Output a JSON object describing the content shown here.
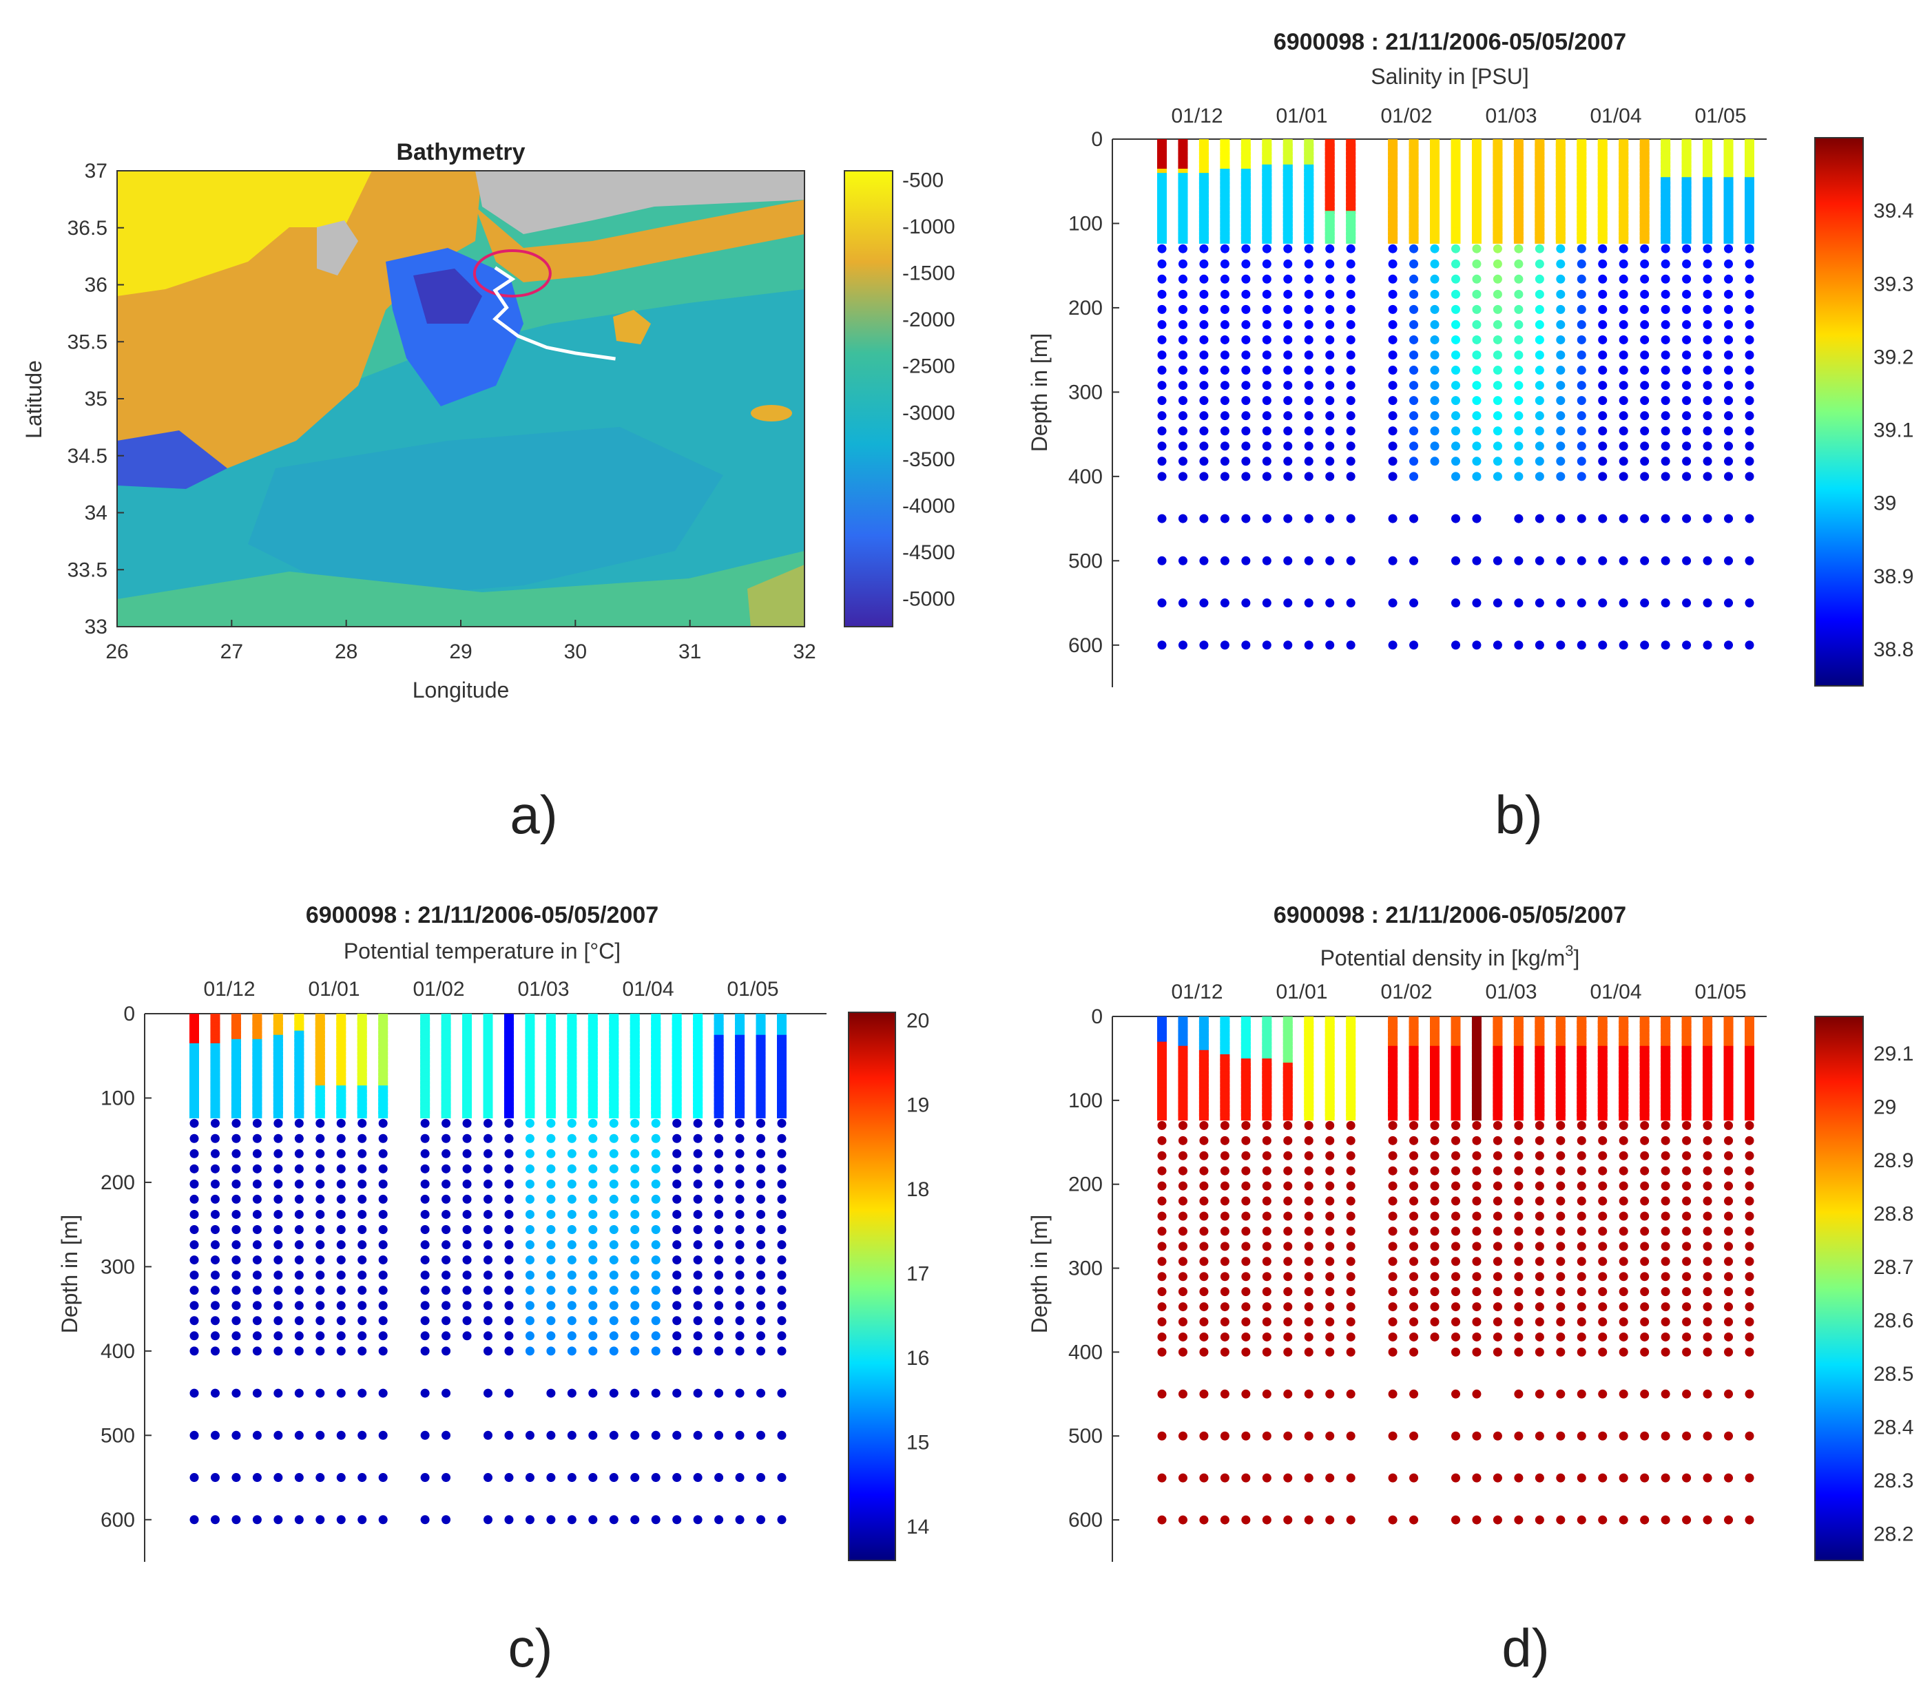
{
  "panel_labels": [
    "a)",
    "b)",
    "c)",
    "d)"
  ],
  "chart_data": [
    {
      "id": "a",
      "type": "heatmap",
      "title": "Bathymetry",
      "xlabel": "Longitude",
      "ylabel": "Latitude",
      "xlim": [
        26,
        32
      ],
      "ylim": [
        33,
        37
      ],
      "xticks": [
        "26",
        "27",
        "28",
        "29",
        "30",
        "31",
        "32"
      ],
      "yticks": [
        "33",
        "33.5",
        "34",
        "34.5",
        "35",
        "35.5",
        "36",
        "36.5",
        "37"
      ],
      "colorbar_ticks": [
        "-500",
        "-1000",
        "-1500",
        "-2000",
        "-2500",
        "-3000",
        "-3500",
        "-4000",
        "-4500",
        "-5000"
      ],
      "colorbar_range": [
        -5300,
        -400
      ],
      "float_track": [
        [
          29.3,
          36.15
        ],
        [
          29.45,
          36.05
        ],
        [
          29.3,
          35.95
        ],
        [
          29.4,
          35.8
        ],
        [
          29.3,
          35.7
        ],
        [
          29.5,
          35.55
        ],
        [
          29.75,
          35.45
        ],
        [
          30.0,
          35.4
        ],
        [
          30.35,
          35.35
        ]
      ],
      "highlight_ellipse_center": [
        29.45,
        36.1
      ]
    },
    {
      "id": "b",
      "type": "scatter",
      "title": "6900098 : 21/11/2006-05/05/2007",
      "subtitle": "Salinity in [PSU]",
      "ylabel": "Depth in [m]",
      "yticks": [
        "0",
        "100",
        "200",
        "300",
        "400",
        "500",
        "600"
      ],
      "ylim": [
        0,
        650
      ],
      "date_ticks": [
        "01/12",
        "01/01",
        "01/02",
        "01/03",
        "01/04",
        "01/05"
      ],
      "colorbar_ticks": [
        "39.4",
        "39.3",
        "39.2",
        "39.1",
        "39",
        "38.9",
        "38.8"
      ],
      "colorbar_range": [
        38.75,
        39.5
      ],
      "variable": "salinity"
    },
    {
      "id": "c",
      "type": "scatter",
      "title": "6900098 : 21/11/2006-05/05/2007",
      "subtitle": "Potential temperature in [°C]",
      "ylabel": "Depth in [m]",
      "yticks": [
        "0",
        "100",
        "200",
        "300",
        "400",
        "500",
        "600"
      ],
      "ylim": [
        0,
        650
      ],
      "date_ticks": [
        "01/12",
        "01/01",
        "01/02",
        "01/03",
        "01/04",
        "01/05"
      ],
      "colorbar_ticks": [
        "20",
        "19",
        "18",
        "17",
        "16",
        "15",
        "14"
      ],
      "colorbar_range": [
        13.6,
        20.1
      ],
      "variable": "temperature"
    },
    {
      "id": "d",
      "type": "scatter",
      "title": "6900098 : 21/11/2006-05/05/2007",
      "subtitle_main": "Potential density in [kg/m",
      "subtitle_sup": "3",
      "subtitle_end": "]",
      "ylabel": "Depth in [m]",
      "yticks": [
        "0",
        "100",
        "200",
        "300",
        "400",
        "500",
        "600"
      ],
      "ylim": [
        0,
        650
      ],
      "date_ticks": [
        "01/12",
        "01/01",
        "01/02",
        "01/03",
        "01/04",
        "01/05"
      ],
      "colorbar_ticks": [
        "29.1",
        "29",
        "28.9",
        "28.8",
        "28.7",
        "28.6",
        "28.5",
        "28.4",
        "28.3",
        "28.2"
      ],
      "colorbar_range": [
        28.15,
        29.17
      ],
      "variable": "density"
    }
  ]
}
